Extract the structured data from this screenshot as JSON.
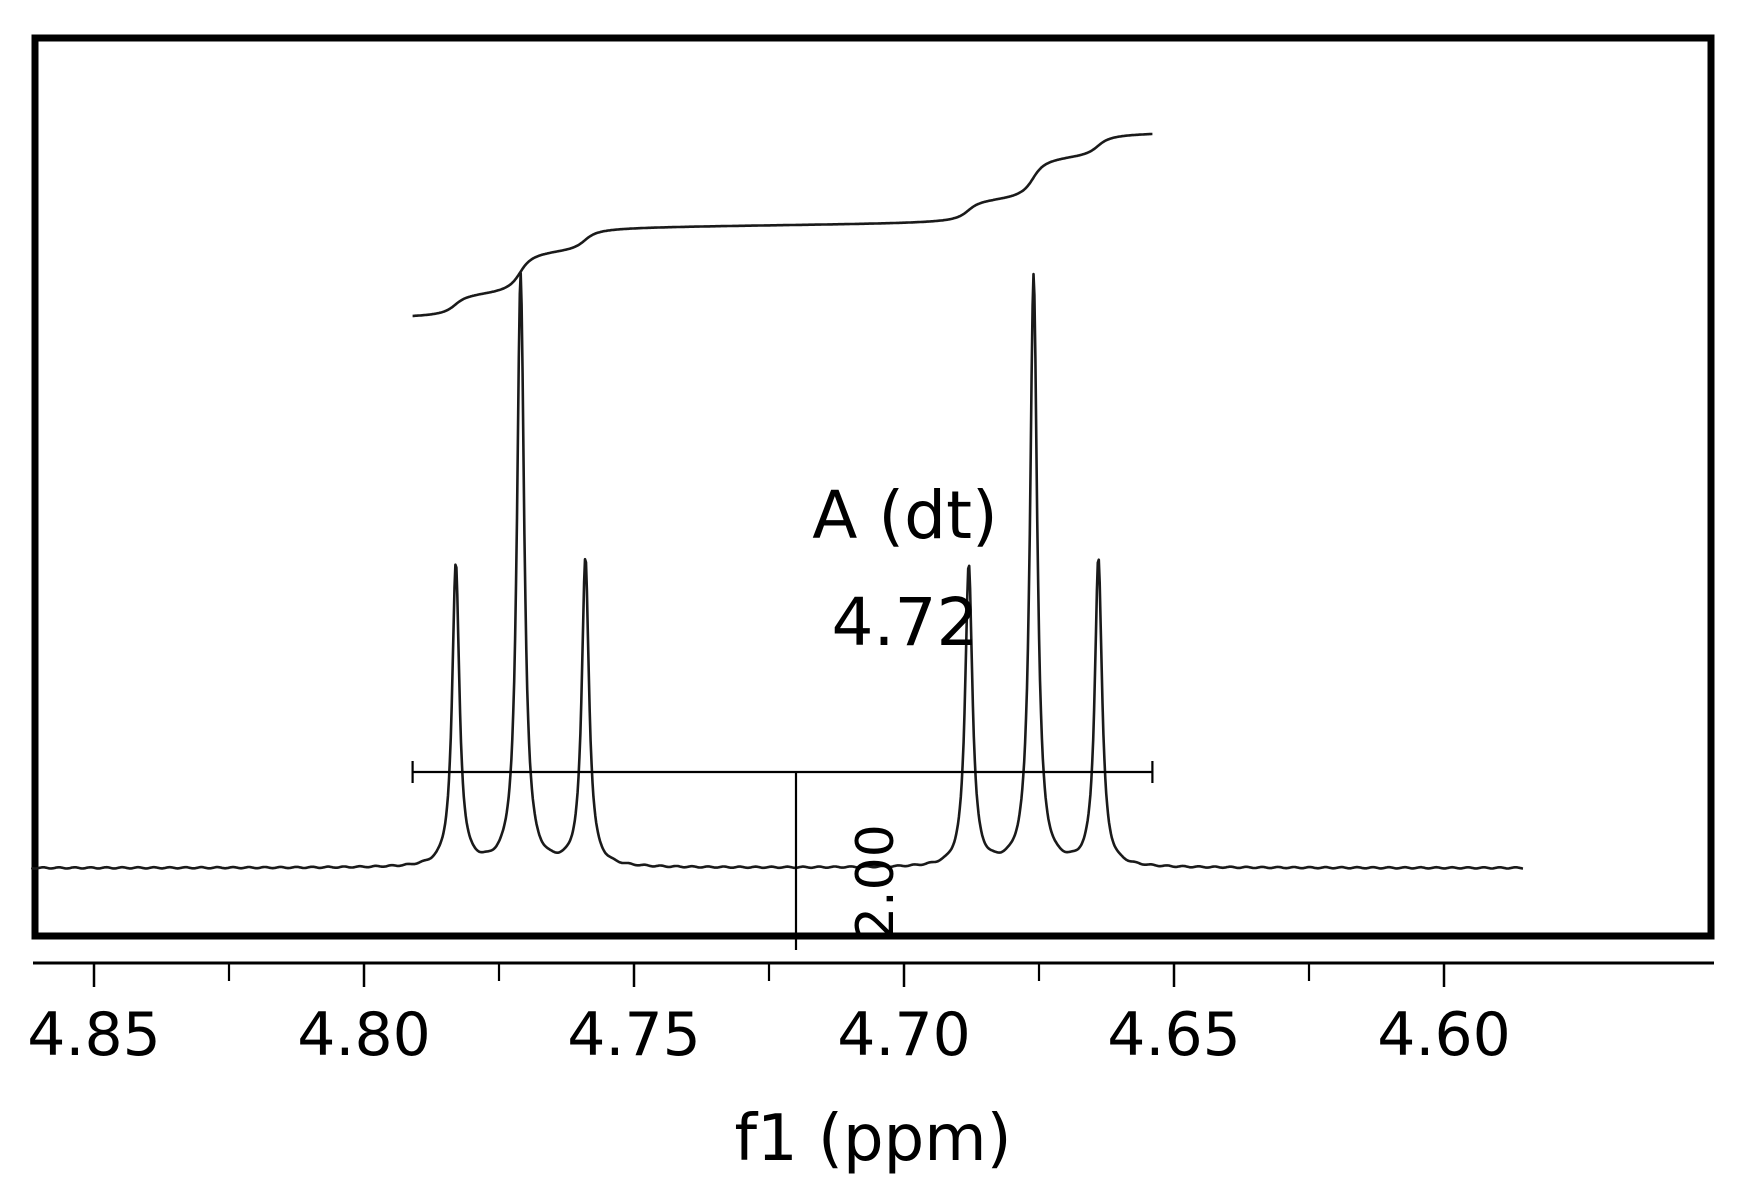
{
  "chart_data": {
    "type": "line",
    "title": "",
    "xlabel": "f1 (ppm)",
    "ylabel": "",
    "xlim": [
      4.862,
      4.585
    ],
    "x_reversed": true,
    "x_ticks": [
      4.85,
      4.8,
      4.75,
      4.7,
      4.65,
      4.6
    ],
    "x_tick_labels": [
      "4.85",
      "4.80",
      "4.75",
      "4.70",
      "4.65",
      "4.60"
    ],
    "x_minor_ticks": [
      4.825,
      4.775,
      4.725,
      4.675,
      4.625
    ],
    "grid": false,
    "legend": "none",
    "multiplet": {
      "label": "A (dt)",
      "shift": "4.72",
      "shift_value": 4.72,
      "range": [
        4.791,
        4.654
      ]
    },
    "integral": {
      "value": "2.00",
      "range": [
        4.791,
        4.654
      ]
    },
    "peaks": [
      {
        "x": 4.783,
        "height": 0.51
      },
      {
        "x": 4.771,
        "height": 1.0
      },
      {
        "x": 4.759,
        "height": 0.52
      },
      {
        "x": 4.688,
        "height": 0.51
      },
      {
        "x": 4.676,
        "height": 1.0
      },
      {
        "x": 4.664,
        "height": 0.52
      }
    ],
    "peak_linewidth_ppm": 0.0008,
    "colors": {
      "line": "#1a1a1a",
      "frame": "#000000"
    }
  }
}
